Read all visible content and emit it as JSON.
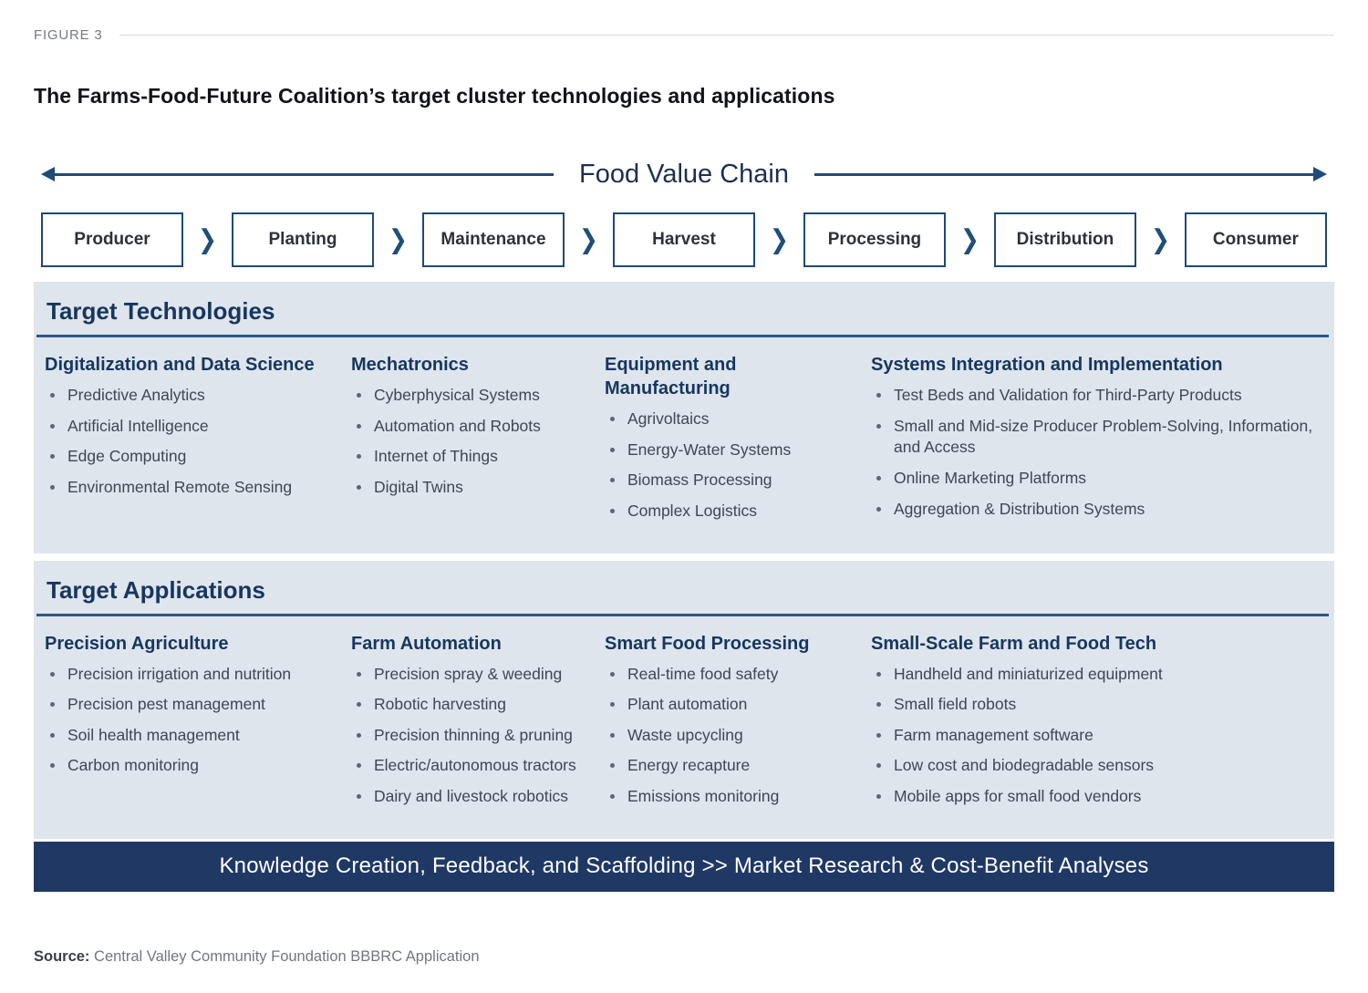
{
  "figure_label": "FIGURE 3",
  "title": "The Farms-Food-Future Coalition’s target cluster technologies and applications",
  "value_chain": {
    "title": "Food Value Chain",
    "separator": "❯",
    "stages": [
      "Producer",
      "Planting",
      "Maintenance",
      "Harvest",
      "Processing",
      "Distribution",
      "Consumer"
    ]
  },
  "technologies": {
    "heading": "Target Technologies",
    "columns": [
      {
        "title": "Digitalization and Data Science",
        "items": [
          "Predictive Analytics",
          "Artificial Intelligence",
          "Edge Computing",
          "Environmental Remote Sensing"
        ]
      },
      {
        "title": "Mechatronics",
        "items": [
          "Cyberphysical Systems",
          "Automation and Robots",
          "Internet of Things",
          "Digital Twins"
        ]
      },
      {
        "title": "Equipment and Manufacturing",
        "items": [
          "Agrivoltaics",
          "Energy-Water Systems",
          "Biomass Processing",
          "Complex Logistics"
        ]
      },
      {
        "title": "Systems Integration and Implementation",
        "items": [
          "Test Beds and Validation for Third-Party Products",
          "Small and Mid-size Producer Problem-Solving, Information, and Access",
          "Online Marketing Platforms",
          "Aggregation & Distribution Systems"
        ]
      }
    ]
  },
  "applications": {
    "heading": "Target Applications",
    "columns": [
      {
        "title": "Precision Agriculture",
        "items": [
          "Precision irrigation and nutrition",
          "Precision pest management",
          "Soil health management",
          "Carbon monitoring"
        ]
      },
      {
        "title": "Farm Automation",
        "items": [
          "Precision spray & weeding",
          "Robotic harvesting",
          "Precision thinning & pruning",
          "Electric/autonomous tractors",
          "Dairy and livestock robotics"
        ]
      },
      {
        "title": "Smart Food Processing",
        "items": [
          "Real-time food safety",
          "Plant automation",
          "Waste upcycling",
          "Energy recapture",
          "Emissions monitoring"
        ]
      },
      {
        "title": "Small-Scale Farm and Food Tech",
        "items": [
          "Handheld and miniaturized equipment",
          "Small field robots",
          "Farm management software",
          "Low cost and biodegradable sensors",
          "Mobile apps for small food vendors"
        ]
      }
    ]
  },
  "banner": {
    "text": "Knowledge Creation, Feedback, and Scaffolding >> Market Research & Cost-Benefit Analyses"
  },
  "source": {
    "label": "Source:",
    "text": "Central Valley Community Foundation BBBRC Application"
  },
  "colors": {
    "navy_heading": "#17365f",
    "navy_border": "#1e4976",
    "banner_bg": "#1f3864",
    "panel_bg": "#dee5ec",
    "body_text": "#3f4751"
  }
}
